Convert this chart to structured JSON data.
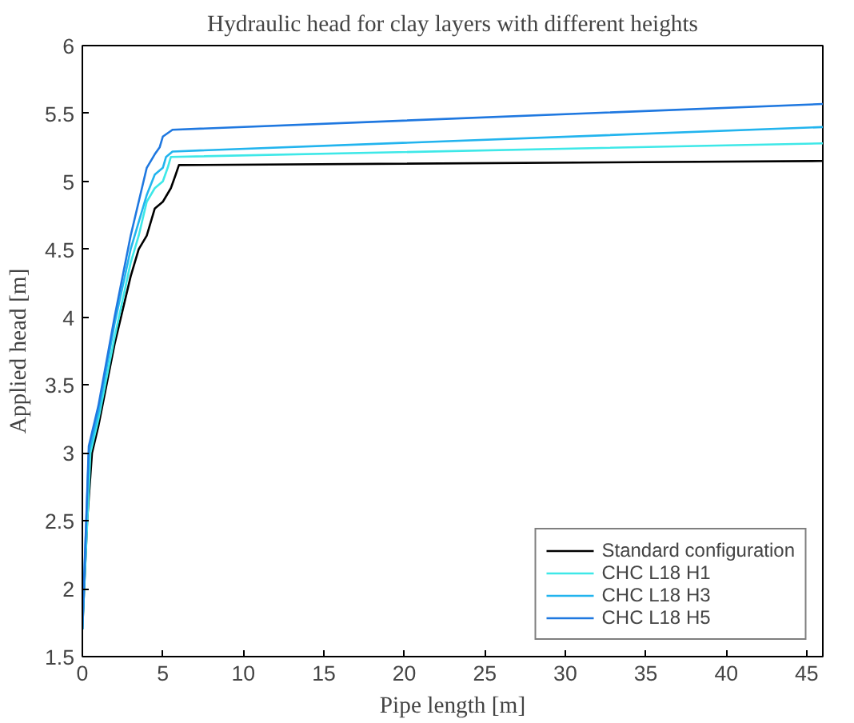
{
  "chart_data": {
    "type": "line",
    "title": "Hydraulic head for clay layers with different heights",
    "xlabel": "Pipe length [m]",
    "ylabel": "Applied head [m]",
    "xlim": [
      0,
      46
    ],
    "ylim": [
      1.5,
      6
    ],
    "xticks": [
      0,
      5,
      10,
      15,
      20,
      25,
      30,
      35,
      40,
      45
    ],
    "yticks": [
      1.5,
      2,
      2.5,
      3,
      3.5,
      4,
      4.5,
      5,
      5.5,
      6
    ],
    "grid": false,
    "legend": "bottom right",
    "series": [
      {
        "name": "Standard configuration",
        "color": "#000000",
        "x": [
          0,
          0.3,
          0.6,
          1,
          2,
          3,
          3.5,
          4,
          4.5,
          5,
          5.5,
          5.8,
          6,
          46
        ],
        "values": [
          1.7,
          2.5,
          3.0,
          3.2,
          3.8,
          4.3,
          4.5,
          4.6,
          4.8,
          4.85,
          4.95,
          5.05,
          5.12,
          5.15
        ]
      },
      {
        "name": "CHC L18 H1",
        "color": "#3ee8e8",
        "x": [
          0,
          0.5,
          1,
          2,
          3,
          3.5,
          4,
          4.5,
          5,
          5.3,
          5.5,
          46
        ],
        "values": [
          1.7,
          3.0,
          3.25,
          3.85,
          4.4,
          4.6,
          4.85,
          4.95,
          5.0,
          5.1,
          5.18,
          5.28
        ]
      },
      {
        "name": "CHC L18 H3",
        "color": "#22b4ee",
        "x": [
          0,
          0.4,
          1,
          2,
          3,
          3.5,
          4,
          4.5,
          5,
          5.2,
          5.6,
          46
        ],
        "values": [
          1.7,
          3.0,
          3.3,
          3.95,
          4.5,
          4.7,
          4.9,
          5.05,
          5.1,
          5.18,
          5.22,
          5.4
        ]
      },
      {
        "name": "CHC L18 H5",
        "color": "#1f78e0",
        "x": [
          0,
          0.4,
          1,
          2,
          3,
          3.5,
          4,
          4.5,
          4.8,
          5,
          5.6,
          46
        ],
        "values": [
          1.7,
          3.05,
          3.35,
          4.0,
          4.6,
          4.85,
          5.1,
          5.2,
          5.25,
          5.33,
          5.38,
          5.57
        ]
      }
    ]
  }
}
